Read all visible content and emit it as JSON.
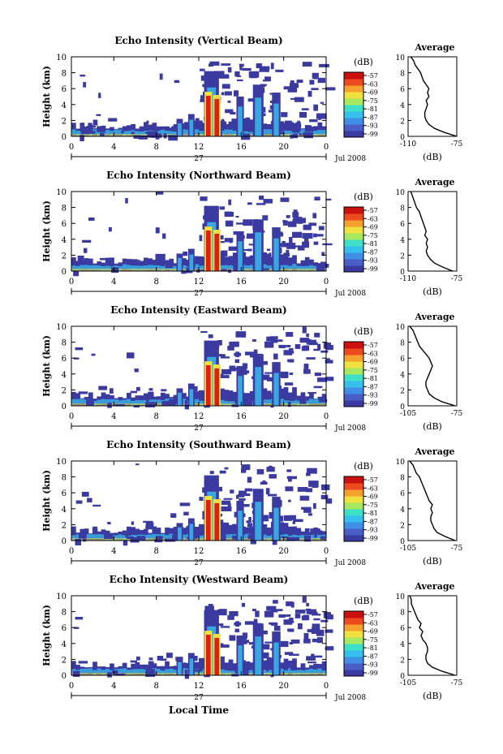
{
  "figure": {
    "xlabel": "Local Time"
  },
  "colorbar": {
    "unit": "(dB)",
    "ticks": [
      "-57",
      "-63",
      "-69",
      "-75",
      "-81",
      "-87",
      "-93",
      "-99"
    ],
    "colors": [
      "#3a3aa0",
      "#4a5ec8",
      "#3f8fe6",
      "#35c0ee",
      "#3fe0c8",
      "#a8e860",
      "#f0e040",
      "#f6a030",
      "#ee4a20",
      "#cc1010"
    ]
  },
  "colors": {
    "echo_mid": "#3aa8e0",
    "echo_low": "#3a3aa0",
    "echo_core": "#e21e14",
    "echo_yellow": "#f0e040"
  },
  "chart_data": [
    {
      "type": "heatmap",
      "title": "Echo Intensity (Vertical Beam)",
      "ylabel": "Height (km)",
      "xlim": [
        0,
        24
      ],
      "ylim": [
        0,
        10
      ],
      "xticks": [
        "0",
        "4",
        "8",
        "12",
        "16",
        "20",
        "0"
      ],
      "yticks": [
        "0",
        "2",
        "4",
        "6",
        "8",
        "10"
      ],
      "day": "27",
      "date": "Jul 2008",
      "profile": {
        "title": "Average",
        "xlabel": "(dB)",
        "xlim": [
          -110,
          -75
        ],
        "xticks": [
          "-110",
          "-75"
        ],
        "yticks": [
          "0",
          "2",
          "4",
          "6",
          "8",
          "10"
        ],
        "heights": [
          0,
          0.5,
          1,
          1.5,
          2,
          2.5,
          3,
          3.5,
          4,
          4.5,
          5,
          5.5,
          6,
          6.5,
          7,
          7.5,
          8,
          8.5,
          9,
          9.5,
          10
        ],
        "values": [
          -75,
          -84,
          -91,
          -95,
          -97,
          -98,
          -98,
          -97,
          -96,
          -97,
          -95,
          -96,
          -95,
          -97,
          -99,
          -100,
          -101,
          -103,
          -105,
          -106,
          -108
        ]
      }
    },
    {
      "type": "heatmap",
      "title": "Echo Intensity (Northward Beam)",
      "ylabel": "Height (km)",
      "xlim": [
        0,
        24
      ],
      "ylim": [
        0,
        10
      ],
      "xticks": [
        "0",
        "4",
        "8",
        "12",
        "16",
        "20",
        "0"
      ],
      "yticks": [
        "0",
        "2",
        "4",
        "6",
        "8",
        "10"
      ],
      "day": "27",
      "date": "Jul 2008",
      "profile": {
        "title": "Average",
        "xlabel": "(dB)",
        "xlim": [
          -110,
          -75
        ],
        "xticks": [
          "-110",
          "-75"
        ],
        "yticks": [
          "0",
          "2",
          "4",
          "6",
          "8",
          "10"
        ],
        "heights": [
          0,
          0.5,
          1,
          1.5,
          2,
          2.5,
          3,
          3.5,
          4,
          4.5,
          5,
          5.5,
          6,
          6.5,
          7,
          7.5,
          8,
          8.5,
          9,
          9.5,
          10
        ],
        "values": [
          -78,
          -85,
          -91,
          -94,
          -96,
          -97,
          -96,
          -97,
          -96,
          -98,
          -97,
          -98,
          -99,
          -100,
          -101,
          -102,
          -104,
          -105,
          -106,
          -107,
          -108
        ]
      }
    },
    {
      "type": "heatmap",
      "title": "Echo Intensity (Eastward Beam)",
      "ylabel": "Height (km)",
      "xlim": [
        0,
        24
      ],
      "ylim": [
        0,
        10
      ],
      "xticks": [
        "0",
        "4",
        "8",
        "12",
        "16",
        "20",
        "0"
      ],
      "yticks": [
        "0",
        "2",
        "4",
        "6",
        "8",
        "10"
      ],
      "day": "27",
      "date": "Jul 2008",
      "profile": {
        "title": "Average",
        "xlabel": "(dB)",
        "xlim": [
          -105,
          -75
        ],
        "xticks": [
          "-105",
          "-75"
        ],
        "yticks": [
          "0",
          "2",
          "4",
          "6",
          "8",
          "10"
        ],
        "heights": [
          0,
          0.5,
          1,
          1.5,
          2,
          2.5,
          3,
          3.5,
          4,
          4.5,
          5,
          5.5,
          6,
          6.5,
          7,
          7.5,
          8,
          8.5,
          9,
          9.5,
          10
        ],
        "values": [
          -76,
          -84,
          -89,
          -92,
          -93,
          -94,
          -94,
          -93,
          -92,
          -91,
          -90,
          -91,
          -92,
          -94,
          -96,
          -98,
          -99,
          -100,
          -101,
          -102,
          -104
        ]
      }
    },
    {
      "type": "heatmap",
      "title": "Echo Intensity (Southward Beam)",
      "ylabel": "Height (km)",
      "xlim": [
        0,
        24
      ],
      "ylim": [
        0,
        10
      ],
      "xticks": [
        "0",
        "4",
        "8",
        "12",
        "16",
        "20",
        "0"
      ],
      "yticks": [
        "0",
        "2",
        "4",
        "6",
        "8",
        "10"
      ],
      "day": "27",
      "date": "Jul 2008",
      "profile": {
        "title": "Average",
        "xlabel": "(dB)",
        "xlim": [
          -105,
          -75
        ],
        "xticks": [
          "-105",
          "-75"
        ],
        "yticks": [
          "0",
          "2",
          "4",
          "6",
          "8",
          "10"
        ],
        "heights": [
          0,
          0.5,
          1,
          1.5,
          2,
          2.5,
          3,
          3.5,
          4,
          4.5,
          5,
          5.5,
          6,
          6.5,
          7,
          7.5,
          8,
          8.5,
          9,
          9.5,
          10
        ],
        "values": [
          -76,
          -82,
          -87,
          -89,
          -90,
          -91,
          -91,
          -90,
          -91,
          -90,
          -92,
          -93,
          -94,
          -95,
          -96,
          -97,
          -98,
          -100,
          -101,
          -102,
          -104
        ]
      }
    },
    {
      "type": "heatmap",
      "title": "Echo Intensity (Westward Beam)",
      "ylabel": "Height (km)",
      "xlim": [
        0,
        24
      ],
      "ylim": [
        0,
        10
      ],
      "xticks": [
        "0",
        "4",
        "8",
        "12",
        "16",
        "20",
        "0"
      ],
      "yticks": [
        "0",
        "2",
        "4",
        "6",
        "8",
        "10"
      ],
      "day": "27",
      "date": "Jul 2008",
      "profile": {
        "title": "Average",
        "xlabel": "(dB)",
        "xlim": [
          -105,
          -75
        ],
        "xticks": [
          "-105",
          "-75"
        ],
        "yticks": [
          "0",
          "2",
          "4",
          "6",
          "8",
          "10"
        ],
        "heights": [
          0,
          0.5,
          1,
          1.5,
          2,
          2.5,
          3,
          3.5,
          4,
          4.5,
          5,
          5.5,
          6,
          6.5,
          7,
          7.5,
          8,
          8.5,
          9,
          9.5,
          10
        ],
        "values": [
          -76,
          -84,
          -90,
          -93,
          -94,
          -94,
          -93,
          -93,
          -94,
          -96,
          -97,
          -96,
          -98,
          -97,
          -99,
          -100,
          -101,
          -102,
          -103,
          -103,
          -104
        ]
      }
    }
  ]
}
